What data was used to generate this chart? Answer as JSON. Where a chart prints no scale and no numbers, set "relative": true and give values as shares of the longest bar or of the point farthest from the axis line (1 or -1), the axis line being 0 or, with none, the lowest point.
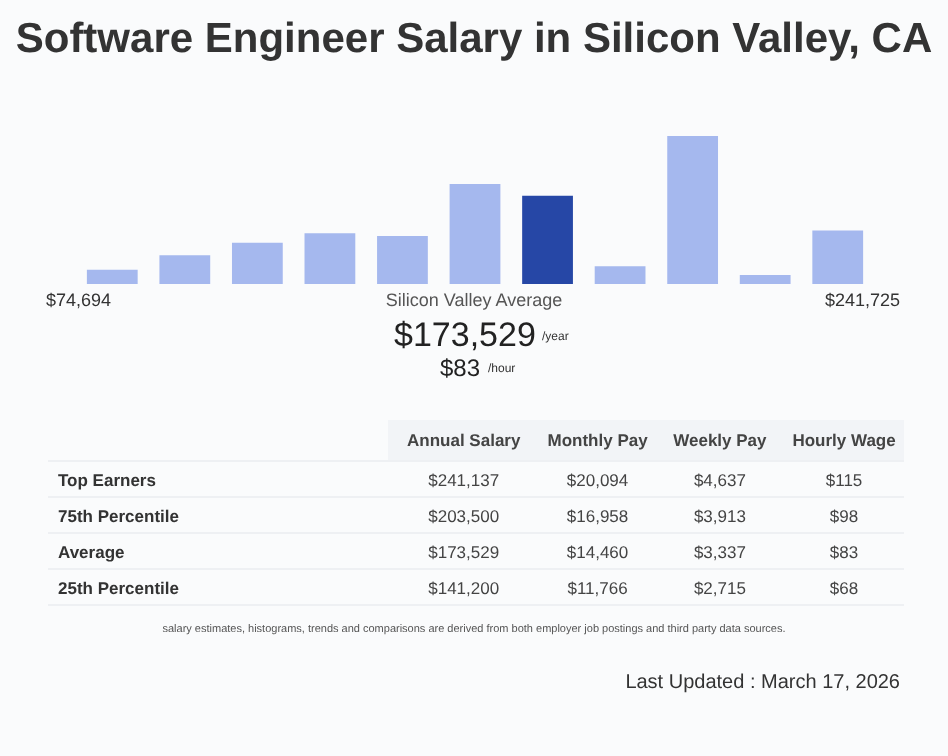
{
  "chart_data": [
    {
      "type": "bar",
      "title": "Software Engineer Salary in Silicon Valley, CA",
      "relative": true,
      "categories": [
        null,
        null,
        null,
        null,
        null,
        null,
        null,
        null,
        null,
        null,
        null
      ],
      "values": [
        0.097,
        0.194,
        0.278,
        0.343,
        0.324,
        0.676,
        0.597,
        0.12,
        1,
        0.06,
        0.361
      ],
      "colors": [
        "#a5b8ee",
        "#a5b8ee",
        "#a5b8ee",
        "#a5b8ee",
        "#a5b8ee",
        "#a5b8ee",
        "#2647a6",
        "#a5b8ee",
        "#a5b8ee",
        "#a5b8ee",
        "#a5b8ee"
      ],
      "legend": false,
      "annotations": [
        "$74,694",
        "Silicon Valley Average",
        "$241,725",
        "$173,529",
        "/year",
        "$83",
        "/hour"
      ]
    },
    {
      "type": "other",
      "categories": [
        "Annual Salary",
        "Monthly Pay",
        "Weekly Pay",
        "Hourly Wage"
      ],
      "y_categories": [
        "Top Earners",
        "75th Percentile",
        "Average",
        "25th Percentile"
      ],
      "cell_labels": [
        [
          "$241,137",
          "$20,094",
          "$4,637",
          "$115"
        ],
        [
          "$203,500",
          "$16,958",
          "$3,913",
          "$98"
        ],
        [
          "$173,529",
          "$14,460",
          "$3,337",
          "$83"
        ],
        [
          "$141,200",
          "$11,766",
          "$2,715",
          "$68"
        ]
      ],
      "annotations": [
        "salary estimates, histograms, trends and comparisons are derived from both employer job postings and third party data sources.",
        "Last Updated : March 17, 2026"
      ]
    }
  ]
}
